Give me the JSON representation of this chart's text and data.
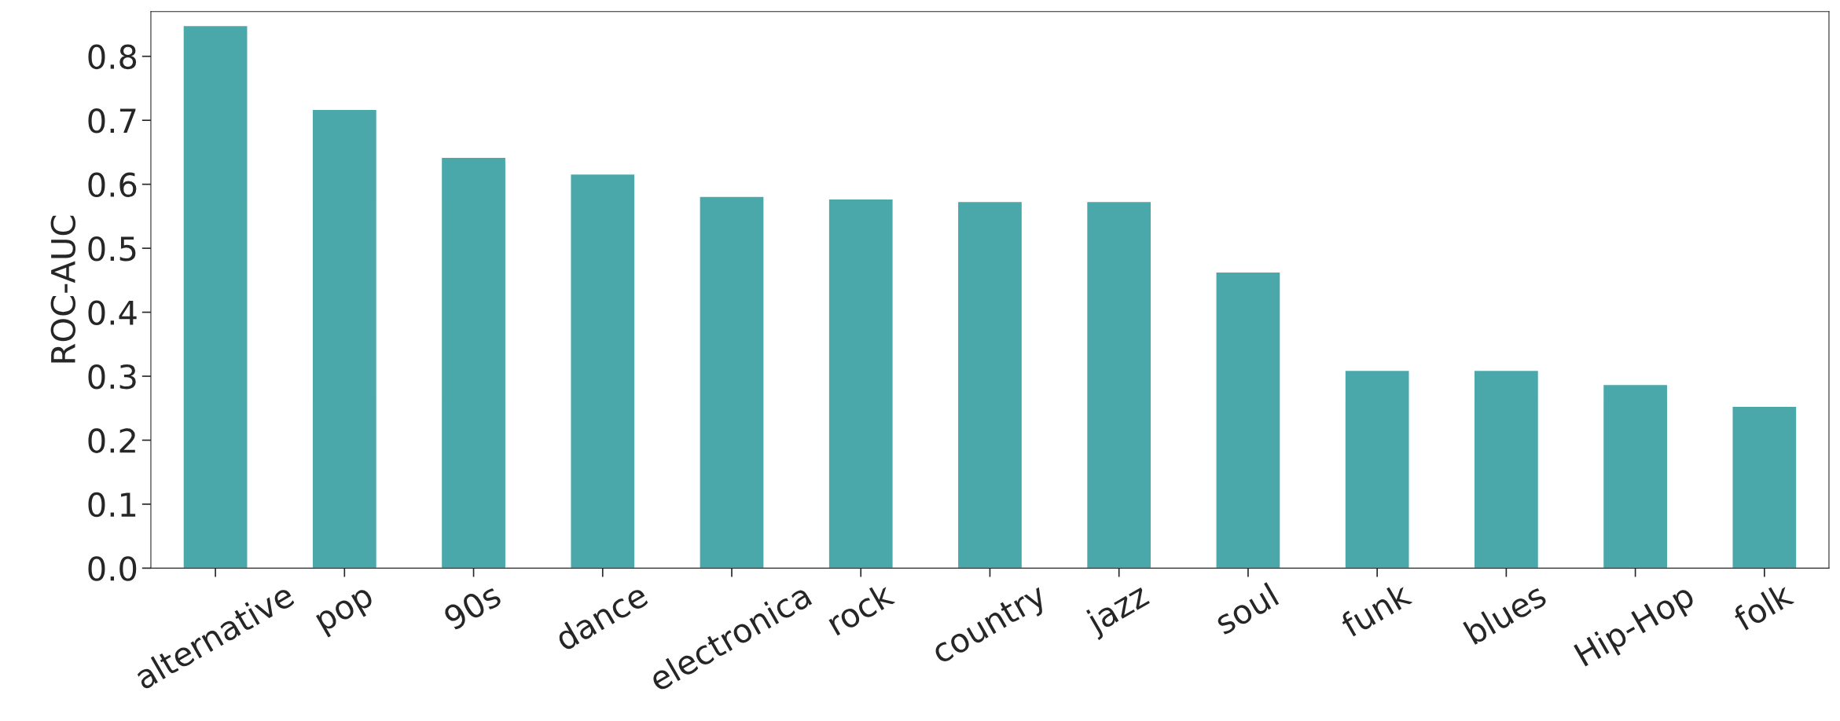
{
  "chart_data": {
    "type": "bar",
    "ylabel": "ROC-AUC",
    "categories": [
      "alternative",
      "pop",
      "90s",
      "dance",
      "electronica",
      "rock",
      "country",
      "jazz",
      "soul",
      "funk",
      "blues",
      "Hip-Hop",
      "folk"
    ],
    "values": [
      0.848,
      0.717,
      0.642,
      0.616,
      0.581,
      0.577,
      0.573,
      0.573,
      0.463,
      0.309,
      0.309,
      0.287,
      0.253
    ],
    "color": "#4aa8ab",
    "ylim": [
      0,
      0.87
    ],
    "yticks": [
      {
        "value": 0,
        "label": "0.0"
      },
      0.1,
      0.2,
      0.3,
      0.4,
      0.5,
      0.6,
      0.7,
      0.8
    ],
    "grid": false,
    "legend": false
  }
}
